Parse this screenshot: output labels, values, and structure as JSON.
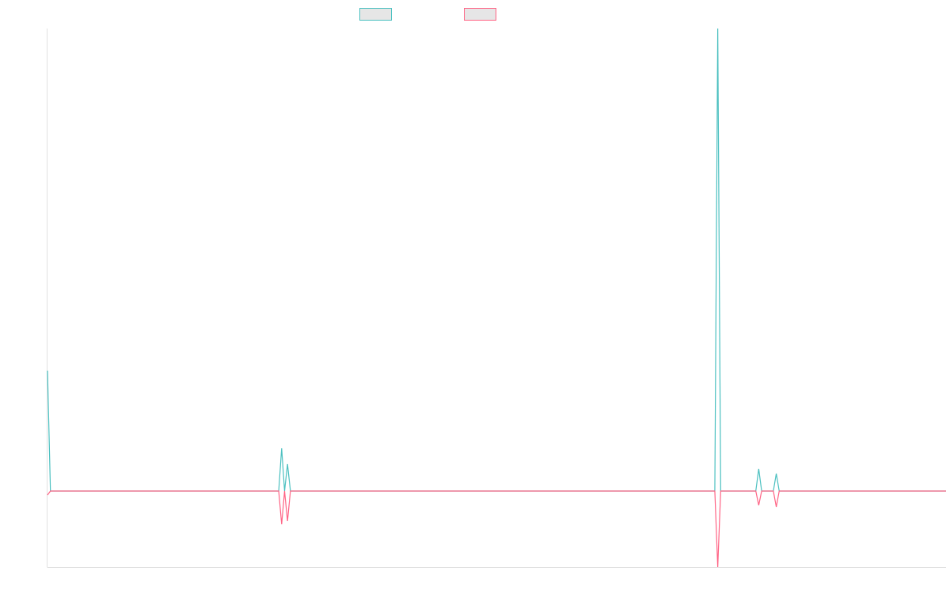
{
  "chart_data": {
    "type": "line",
    "x": [
      0,
      1,
      14,
      43,
      79,
      80,
      81,
      82,
      83,
      88,
      228,
      229,
      230,
      242,
      243,
      244,
      248,
      249,
      250,
      254,
      257,
      307
    ],
    "xlim": [
      0,
      307
    ],
    "ylim": [
      -96,
      584
    ],
    "series": [
      {
        "color": "#4bc0c0",
        "fill": "#e6e6e6",
        "values": [
          152,
          0,
          0,
          0,
          0,
          54,
          0,
          34,
          0,
          0,
          0,
          584,
          0,
          0,
          28,
          0,
          0,
          22,
          0,
          0,
          0,
          0
        ]
      },
      {
        "color": "#ff6384",
        "fill": "#e6e6e6",
        "values": [
          -5,
          0,
          0,
          0,
          0,
          -42,
          0,
          -38,
          0,
          0,
          0,
          -96,
          0,
          0,
          -18,
          0,
          0,
          -20,
          0,
          0,
          0,
          0
        ]
      }
    ],
    "legend": "top"
  }
}
